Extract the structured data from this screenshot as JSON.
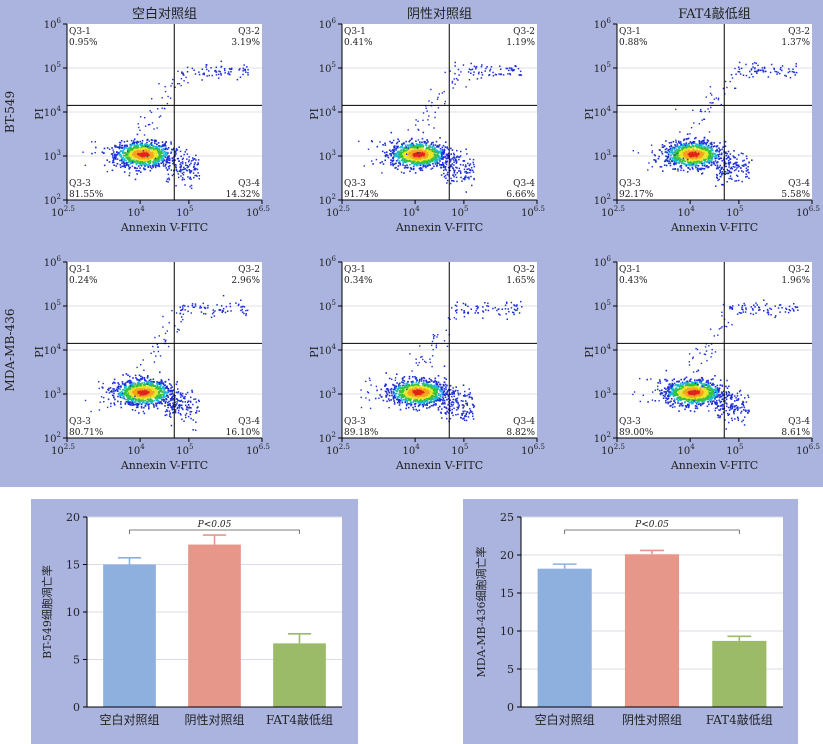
{
  "flow": {
    "rows": [
      {
        "label": "BT-549"
      },
      {
        "label": "MDA-MB-436"
      }
    ],
    "x_axis_label": "Annexin V-FITC",
    "y_axis_label": "PI",
    "x_ticks": [
      {
        "base": "10",
        "exp": "2.5",
        "value": 2.5
      },
      {
        "base": "10",
        "exp": "4",
        "value": 4
      },
      {
        "base": "10",
        "exp": "5",
        "value": 5
      },
      {
        "base": "10",
        "exp": "6.5",
        "value": 6.5
      }
    ],
    "y_ticks": [
      {
        "base": "10",
        "exp": "2",
        "value": 2
      },
      {
        "base": "10",
        "exp": "3",
        "value": 3
      },
      {
        "base": "10",
        "exp": "4",
        "value": 4
      },
      {
        "base": "10",
        "exp": "5",
        "value": 5
      },
      {
        "base": "10",
        "exp": "6",
        "value": 6
      }
    ],
    "gate_x_log": 4.7,
    "gate_y_log": 4.15,
    "plots": [
      {
        "row": 0,
        "col": 0,
        "title": "空白对照组",
        "q1": "0.95%",
        "q2": "3.19%",
        "q3": "81.55%",
        "q4": "14.32%"
      },
      {
        "row": 0,
        "col": 1,
        "title": "阴性对照组",
        "q1": "0.41%",
        "q2": "1.19%",
        "q3": "91.74%",
        "q4": "6.66%"
      },
      {
        "row": 0,
        "col": 2,
        "title": "FAT4敲低组",
        "q1": "0.88%",
        "q2": "1.37%",
        "q3": "92.17%",
        "q4": "5.58%"
      },
      {
        "row": 1,
        "col": 0,
        "title": "",
        "q1": "0.24%",
        "q2": "2.96%",
        "q3": "80.71%",
        "q4": "16.10%"
      },
      {
        "row": 1,
        "col": 1,
        "title": "",
        "q1": "0.34%",
        "q2": "1.65%",
        "q3": "89.18%",
        "q4": "8.82%"
      },
      {
        "row": 1,
        "col": 2,
        "title": "",
        "q1": "0.43%",
        "q2": "1.96%",
        "q3": "89.00%",
        "q4": "8.61%"
      }
    ],
    "quadrant_names": {
      "q1": "Q3-1",
      "q2": "Q3-2",
      "q3": "Q3-3",
      "q4": "Q3-4"
    }
  },
  "chart_data": [
    {
      "type": "bar",
      "categories": [
        "空白对照组",
        "阴性对照组",
        "FAT4敲低组"
      ],
      "values": [
        15.0,
        17.1,
        6.7
      ],
      "errors": [
        0.7,
        1.0,
        1.0
      ],
      "colors": [
        "#8eb0de",
        "#e6978a",
        "#9bbb68"
      ],
      "ylabel": "BT-549细胞凋亡率",
      "ylim": [
        0,
        20
      ],
      "yticks": [
        0,
        5,
        10,
        15,
        20
      ],
      "significance": "P<0.05"
    },
    {
      "type": "bar",
      "categories": [
        "空白对照组",
        "阴性对照组",
        "FAT4敲低组"
      ],
      "values": [
        18.2,
        20.1,
        8.7
      ],
      "errors": [
        0.6,
        0.5,
        0.6
      ],
      "colors": [
        "#8eb0de",
        "#e6978a",
        "#9bbb68"
      ],
      "ylabel": "MDA-MB-436细胞凋亡率",
      "ylim": [
        0,
        25
      ],
      "yticks": [
        0,
        5,
        10,
        15,
        20,
        25
      ],
      "significance": "P<0.05"
    }
  ]
}
